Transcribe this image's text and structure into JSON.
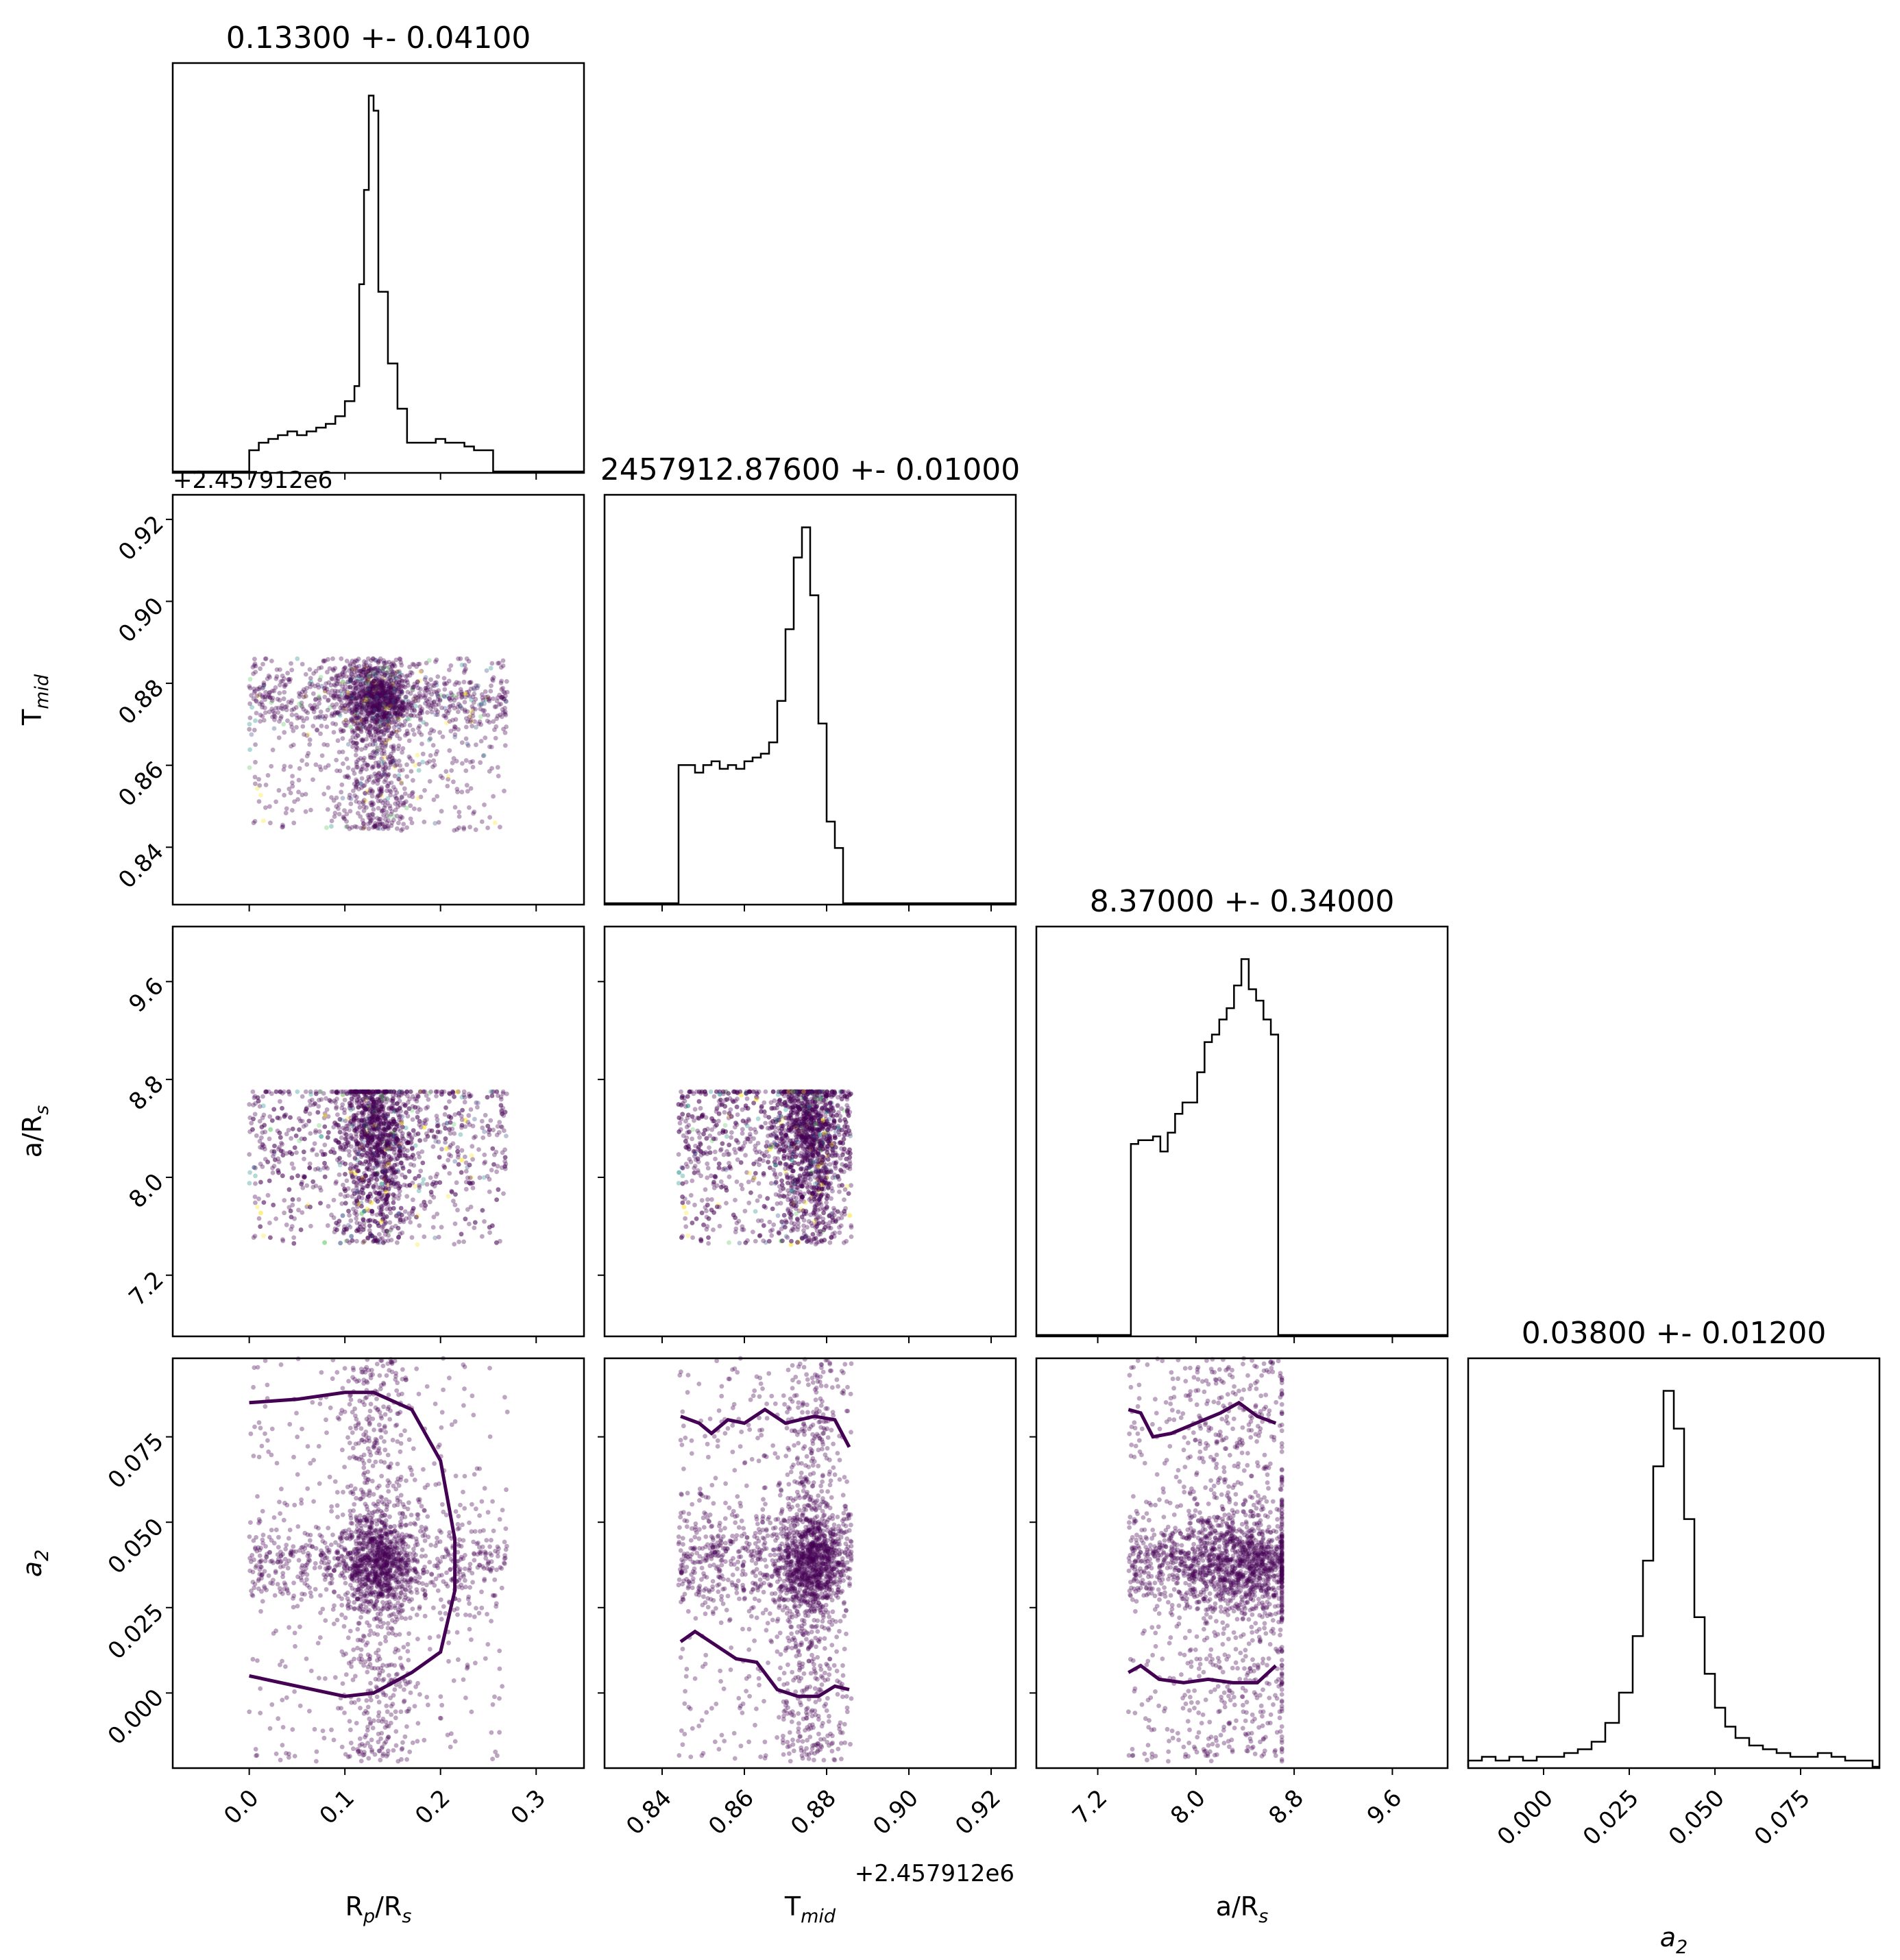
{
  "chart_data": {
    "type": "scatter",
    "subtype": "corner-plot",
    "point_color": "#440154",
    "alt_point_colors": [
      "#3b528b",
      "#21918c",
      "#5ec962",
      "#fde725"
    ],
    "line_color": "#000000",
    "background": "#ffffff",
    "grid": false,
    "parameters": [
      {
        "label_main": "R",
        "label_sub": "p",
        "label_tail": "/R",
        "label_tail_sub": "s",
        "title": "0.13300 +- 0.04100",
        "ticks": [
          0.0,
          0.1,
          0.2,
          0.3
        ],
        "tick_labels": [
          "0.0",
          "0.1",
          "0.2",
          "0.3"
        ],
        "range": [
          -0.08,
          0.35
        ],
        "offset_label": "",
        "sample_range": [
          0.0,
          0.27
        ],
        "hist": [
          {
            "x": 0.005,
            "y": 0.06
          },
          {
            "x": 0.015,
            "y": 0.08
          },
          {
            "x": 0.025,
            "y": 0.09
          },
          {
            "x": 0.035,
            "y": 0.1
          },
          {
            "x": 0.045,
            "y": 0.11
          },
          {
            "x": 0.055,
            "y": 0.1
          },
          {
            "x": 0.065,
            "y": 0.11
          },
          {
            "x": 0.075,
            "y": 0.12
          },
          {
            "x": 0.085,
            "y": 0.13
          },
          {
            "x": 0.095,
            "y": 0.15
          },
          {
            "x": 0.105,
            "y": 0.19
          },
          {
            "x": 0.115,
            "y": 0.23
          },
          {
            "x": 0.12,
            "y": 0.5
          },
          {
            "x": 0.125,
            "y": 0.75
          },
          {
            "x": 0.13,
            "y": 1.0
          },
          {
            "x": 0.135,
            "y": 0.96
          },
          {
            "x": 0.14,
            "y": 0.48
          },
          {
            "x": 0.15,
            "y": 0.29
          },
          {
            "x": 0.16,
            "y": 0.17
          },
          {
            "x": 0.17,
            "y": 0.08
          },
          {
            "x": 0.18,
            "y": 0.08
          },
          {
            "x": 0.19,
            "y": 0.08
          },
          {
            "x": 0.2,
            "y": 0.09
          },
          {
            "x": 0.21,
            "y": 0.08
          },
          {
            "x": 0.22,
            "y": 0.08
          },
          {
            "x": 0.23,
            "y": 0.07
          },
          {
            "x": 0.24,
            "y": 0.06
          },
          {
            "x": 0.25,
            "y": 0.06
          }
        ]
      },
      {
        "label_main": "T",
        "label_sub": "mid",
        "label_tail": "",
        "label_tail_sub": "",
        "title": "2457912.87600 +- 0.01000",
        "ticks": [
          0.84,
          0.86,
          0.88,
          0.9,
          0.92
        ],
        "tick_labels": [
          "0.84",
          "0.86",
          "0.88",
          "0.90",
          "0.92"
        ],
        "range": [
          0.826,
          0.926
        ],
        "offset_label": "+2.457912e6",
        "sample_range": [
          0.844,
          0.886
        ],
        "hist": [
          {
            "x": 0.845,
            "y": 0.37
          },
          {
            "x": 0.847,
            "y": 0.37
          },
          {
            "x": 0.849,
            "y": 0.35
          },
          {
            "x": 0.851,
            "y": 0.37
          },
          {
            "x": 0.853,
            "y": 0.38
          },
          {
            "x": 0.855,
            "y": 0.36
          },
          {
            "x": 0.857,
            "y": 0.37
          },
          {
            "x": 0.859,
            "y": 0.36
          },
          {
            "x": 0.861,
            "y": 0.38
          },
          {
            "x": 0.863,
            "y": 0.39
          },
          {
            "x": 0.865,
            "y": 0.4
          },
          {
            "x": 0.867,
            "y": 0.43
          },
          {
            "x": 0.869,
            "y": 0.54
          },
          {
            "x": 0.871,
            "y": 0.73
          },
          {
            "x": 0.873,
            "y": 0.92
          },
          {
            "x": 0.875,
            "y": 1.0
          },
          {
            "x": 0.877,
            "y": 0.82
          },
          {
            "x": 0.879,
            "y": 0.48
          },
          {
            "x": 0.881,
            "y": 0.22
          },
          {
            "x": 0.883,
            "y": 0.15
          }
        ]
      },
      {
        "label_main": "a/R",
        "label_sub": "s",
        "label_tail": "",
        "label_tail_sub": "",
        "title": "8.37000 +- 0.34000",
        "ticks": [
          7.2,
          8.0,
          8.8,
          9.6
        ],
        "tick_labels": [
          "7.2",
          "8.0",
          "8.8",
          "9.6"
        ],
        "range": [
          6.7,
          10.05
        ],
        "offset_label": "",
        "sample_range": [
          7.45,
          8.7
        ],
        "hist": [
          {
            "x": 7.5,
            "y": 0.51
          },
          {
            "x": 7.56,
            "y": 0.52
          },
          {
            "x": 7.62,
            "y": 0.52
          },
          {
            "x": 7.68,
            "y": 0.53
          },
          {
            "x": 7.74,
            "y": 0.49
          },
          {
            "x": 7.8,
            "y": 0.54
          },
          {
            "x": 7.86,
            "y": 0.59
          },
          {
            "x": 7.92,
            "y": 0.62
          },
          {
            "x": 7.98,
            "y": 0.62
          },
          {
            "x": 8.04,
            "y": 0.7
          },
          {
            "x": 8.1,
            "y": 0.78
          },
          {
            "x": 8.16,
            "y": 0.8
          },
          {
            "x": 8.22,
            "y": 0.84
          },
          {
            "x": 8.28,
            "y": 0.87
          },
          {
            "x": 8.34,
            "y": 0.93
          },
          {
            "x": 8.4,
            "y": 1.0
          },
          {
            "x": 8.46,
            "y": 0.92
          },
          {
            "x": 8.52,
            "y": 0.89
          },
          {
            "x": 8.58,
            "y": 0.84
          },
          {
            "x": 8.64,
            "y": 0.8
          }
        ]
      },
      {
        "label_main": "a",
        "label_sub": "2",
        "label_tail": "",
        "label_tail_sub": "",
        "label_italic": true,
        "title": "0.03800 +- 0.01200",
        "ticks": [
          0.0,
          0.025,
          0.05,
          0.075
        ],
        "tick_labels": [
          "0.000",
          "0.025",
          "0.050",
          "0.075"
        ],
        "range": [
          -0.022,
          0.098
        ],
        "offset_label": "",
        "sample_range": [
          -0.02,
          0.1
        ],
        "hist": [
          {
            "x": -0.02,
            "y": 0.02
          },
          {
            "x": -0.016,
            "y": 0.03
          },
          {
            "x": -0.012,
            "y": 0.02
          },
          {
            "x": -0.008,
            "y": 0.03
          },
          {
            "x": -0.004,
            "y": 0.02
          },
          {
            "x": 0.0,
            "y": 0.03
          },
          {
            "x": 0.004,
            "y": 0.03
          },
          {
            "x": 0.008,
            "y": 0.04
          },
          {
            "x": 0.012,
            "y": 0.05
          },
          {
            "x": 0.016,
            "y": 0.07
          },
          {
            "x": 0.02,
            "y": 0.12
          },
          {
            "x": 0.024,
            "y": 0.2
          },
          {
            "x": 0.028,
            "y": 0.35
          },
          {
            "x": 0.031,
            "y": 0.55
          },
          {
            "x": 0.034,
            "y": 0.8
          },
          {
            "x": 0.037,
            "y": 1.0
          },
          {
            "x": 0.04,
            "y": 0.9
          },
          {
            "x": 0.043,
            "y": 0.66
          },
          {
            "x": 0.046,
            "y": 0.4
          },
          {
            "x": 0.049,
            "y": 0.25
          },
          {
            "x": 0.052,
            "y": 0.16
          },
          {
            "x": 0.055,
            "y": 0.11
          },
          {
            "x": 0.058,
            "y": 0.08
          },
          {
            "x": 0.062,
            "y": 0.06
          },
          {
            "x": 0.066,
            "y": 0.05
          },
          {
            "x": 0.07,
            "y": 0.04
          },
          {
            "x": 0.074,
            "y": 0.03
          },
          {
            "x": 0.078,
            "y": 0.03
          },
          {
            "x": 0.082,
            "y": 0.04
          },
          {
            "x": 0.086,
            "y": 0.03
          },
          {
            "x": 0.09,
            "y": 0.02
          },
          {
            "x": 0.094,
            "y": 0.02
          }
        ]
      }
    ],
    "contours": {
      "a2_vs_RpRs": {
        "upper": [
          [
            0.0,
            0.085
          ],
          [
            0.05,
            0.086
          ],
          [
            0.1,
            0.088
          ],
          [
            0.13,
            0.088
          ],
          [
            0.17,
            0.083
          ],
          [
            0.2,
            0.068
          ],
          [
            0.215,
            0.045
          ],
          [
            0.215,
            0.03
          ],
          [
            0.2,
            0.012
          ],
          [
            0.17,
            0.006
          ],
          [
            0.13,
            0.0
          ],
          [
            0.1,
            -0.001
          ],
          [
            0.05,
            0.002
          ],
          [
            0.0,
            0.005
          ]
        ]
      },
      "a2_vs_Tmid": {
        "upper": [
          [
            0.8445,
            0.081
          ],
          [
            0.849,
            0.079
          ],
          [
            0.852,
            0.076
          ],
          [
            0.856,
            0.08
          ],
          [
            0.86,
            0.079
          ],
          [
            0.865,
            0.083
          ],
          [
            0.87,
            0.079
          ],
          [
            0.877,
            0.081
          ],
          [
            0.882,
            0.08
          ],
          [
            0.8855,
            0.072
          ]
        ],
        "lower": [
          [
            0.8445,
            0.015
          ],
          [
            0.848,
            0.018
          ],
          [
            0.853,
            0.014
          ],
          [
            0.858,
            0.01
          ],
          [
            0.863,
            0.009
          ],
          [
            0.868,
            0.001
          ],
          [
            0.873,
            -0.001
          ],
          [
            0.878,
            -0.001
          ],
          [
            0.882,
            0.002
          ],
          [
            0.8855,
            0.001
          ]
        ]
      },
      "a2_vs_aRs": {
        "upper": [
          [
            7.45,
            0.083
          ],
          [
            7.55,
            0.082
          ],
          [
            7.65,
            0.075
          ],
          [
            7.8,
            0.076
          ],
          [
            8.0,
            0.079
          ],
          [
            8.2,
            0.082
          ],
          [
            8.35,
            0.085
          ],
          [
            8.5,
            0.081
          ],
          [
            8.65,
            0.079
          ]
        ],
        "lower": [
          [
            7.45,
            0.006
          ],
          [
            7.55,
            0.008
          ],
          [
            7.7,
            0.004
          ],
          [
            7.9,
            0.003
          ],
          [
            8.1,
            0.004
          ],
          [
            8.3,
            0.003
          ],
          [
            8.5,
            0.003
          ],
          [
            8.65,
            0.008
          ]
        ]
      }
    }
  }
}
